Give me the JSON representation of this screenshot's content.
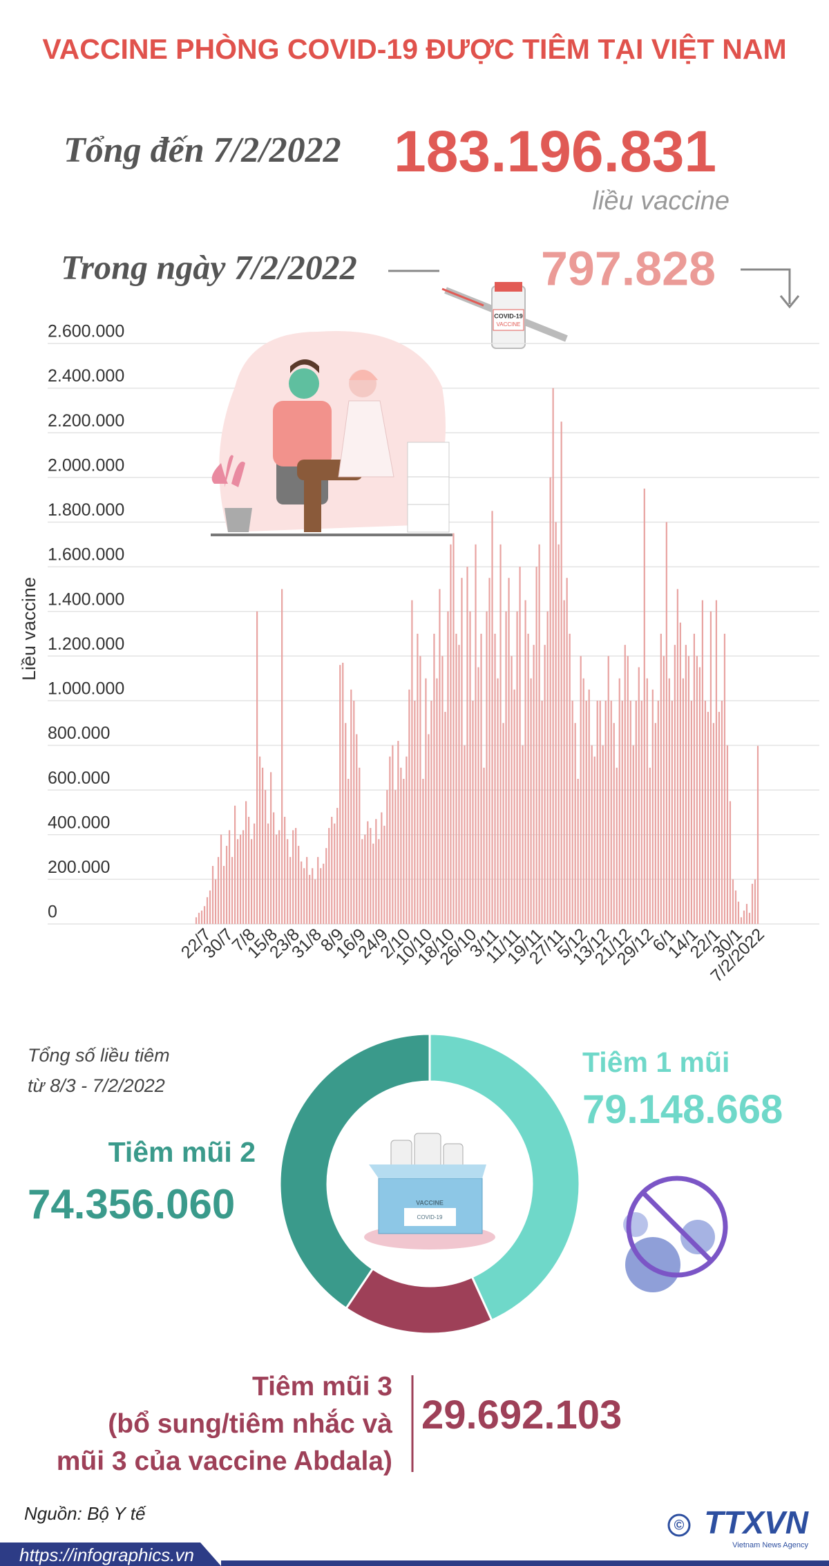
{
  "header": {
    "title": "VACCINE PHÒNG COVID-19 ĐƯỢC TIÊM TẠI VIỆT NAM",
    "total_label": "Tổng đến 7/2/2022",
    "total_value": "183.196.831",
    "total_unit": "liều vaccine",
    "day_label": "Trong ngày 7/2/2022",
    "day_value": "797.828"
  },
  "chart_data": [
    {
      "type": "bar",
      "ylabel": "Liều vaccine",
      "color": "#e8a3a1",
      "grid": true,
      "ylim": [
        0,
        2600000
      ],
      "yticks": [
        0,
        {
          "value": 200000,
          "label": "200.000"
        },
        {
          "value": 400000,
          "label": "400.000"
        },
        {
          "value": 600000,
          "label": "600.000"
        },
        {
          "value": 800000,
          "label": "800.000"
        },
        {
          "value": 1000000,
          "label": "1.000.000"
        },
        {
          "value": 1200000,
          "label": "1.200.000"
        },
        {
          "value": 1400000,
          "label": "1.400.000"
        },
        {
          "value": 1600000,
          "label": "1.600.000"
        },
        {
          "value": 1800000,
          "label": "1.800.000"
        },
        {
          "value": 2000000,
          "label": "2.000.000"
        },
        {
          "value": 2200000,
          "label": "2.200.000"
        },
        {
          "value": 2400000,
          "label": "2.400.000"
        },
        {
          "value": 2600000,
          "label": "2.600.000"
        }
      ],
      "categories": [
        null,
        null,
        null,
        "22/7",
        null,
        null,
        null,
        null,
        null,
        null,
        null,
        "30/7",
        null,
        null,
        null,
        null,
        null,
        null,
        null,
        "7/8",
        null,
        null,
        null,
        null,
        null,
        null,
        null,
        "15/8",
        null,
        null,
        null,
        null,
        null,
        null,
        null,
        "23/8",
        null,
        null,
        null,
        null,
        null,
        null,
        null,
        "31/8",
        null,
        null,
        null,
        null,
        null,
        null,
        null,
        "8/9",
        null,
        null,
        null,
        null,
        null,
        null,
        null,
        "16/9",
        null,
        null,
        null,
        null,
        null,
        null,
        null,
        "24/9",
        null,
        null,
        null,
        null,
        null,
        null,
        null,
        "2/10",
        null,
        null,
        null,
        null,
        null,
        null,
        null,
        "10/10",
        null,
        null,
        null,
        null,
        null,
        null,
        null,
        "18/10",
        null,
        null,
        null,
        null,
        null,
        null,
        null,
        "26/10",
        null,
        null,
        null,
        null,
        null,
        null,
        null,
        "3/11",
        null,
        null,
        null,
        null,
        null,
        null,
        null,
        "11/11",
        null,
        null,
        null,
        null,
        null,
        null,
        null,
        "19/11",
        null,
        null,
        null,
        null,
        null,
        null,
        null,
        "27/11",
        null,
        null,
        null,
        null,
        null,
        null,
        null,
        "5/12",
        null,
        null,
        null,
        null,
        null,
        null,
        null,
        "13/12",
        null,
        null,
        null,
        null,
        null,
        null,
        null,
        "21/12",
        null,
        null,
        null,
        null,
        null,
        null,
        null,
        "29/12",
        null,
        null,
        null,
        null,
        null,
        null,
        null,
        "6/1",
        null,
        null,
        null,
        null,
        null,
        null,
        null,
        "14/1",
        null,
        null,
        null,
        null,
        null,
        null,
        null,
        "22/1",
        null,
        null,
        null,
        null,
        null,
        null,
        null,
        "30/1",
        null,
        null,
        null,
        null,
        null,
        null,
        null,
        "7/2/2022"
      ],
      "values": [
        30000,
        50000,
        60000,
        80000,
        120000,
        150000,
        260000,
        200000,
        300000,
        400000,
        260000,
        350000,
        420000,
        300000,
        530000,
        380000,
        400000,
        420000,
        550000,
        480000,
        380000,
        450000,
        1400000,
        750000,
        700000,
        600000,
        450000,
        680000,
        500000,
        400000,
        420000,
        1500000,
        480000,
        380000,
        300000,
        420000,
        430000,
        350000,
        280000,
        250000,
        300000,
        220000,
        250000,
        200000,
        300000,
        250000,
        270000,
        340000,
        430000,
        480000,
        450000,
        520000,
        1160000,
        1170000,
        900000,
        650000,
        1050000,
        1000000,
        850000,
        700000,
        380000,
        400000,
        460000,
        430000,
        360000,
        470000,
        380000,
        500000,
        440000,
        600000,
        750000,
        800000,
        600000,
        820000,
        700000,
        650000,
        750000,
        1050000,
        1450000,
        1000000,
        1300000,
        1200000,
        650000,
        1100000,
        850000,
        1000000,
        1300000,
        1100000,
        1500000,
        1200000,
        950000,
        1400000,
        1700000,
        1750000,
        1300000,
        1250000,
        1550000,
        800000,
        1600000,
        1400000,
        1000000,
        1700000,
        1150000,
        1300000,
        700000,
        1400000,
        1550000,
        1850000,
        1300000,
        1100000,
        1700000,
        900000,
        1400000,
        1550000,
        1200000,
        1050000,
        1400000,
        1600000,
        800000,
        1450000,
        1300000,
        1100000,
        1250000,
        1600000,
        1700000,
        1000000,
        1250000,
        1400000,
        2000000,
        2400000,
        1800000,
        1700000,
        2250000,
        1450000,
        1550000,
        1300000,
        1000000,
        900000,
        650000,
        1200000,
        1100000,
        1000000,
        1050000,
        800000,
        750000,
        1000000,
        1000000,
        800000,
        1000000,
        1200000,
        1000000,
        900000,
        700000,
        1100000,
        1000000,
        1250000,
        1200000,
        1000000,
        800000,
        1000000,
        1150000,
        1000000,
        1950000,
        1100000,
        700000,
        1050000,
        900000,
        1000000,
        1300000,
        1200000,
        1800000,
        1100000,
        1000000,
        1250000,
        1500000,
        1350000,
        1100000,
        1250000,
        1200000,
        1000000,
        1300000,
        1200000,
        1150000,
        1450000,
        1000000,
        950000,
        1400000,
        900000,
        1450000,
        950000,
        1000000,
        1300000,
        800000,
        550000,
        200000,
        150000,
        100000,
        30000,
        60000,
        90000,
        50000,
        180000,
        200000,
        797828
      ]
    },
    {
      "type": "pie",
      "subtitle": "Tổng số liều tiêm\ntừ 8/3 - 7/2/2022",
      "categories": [
        "Tiêm 1 mũi",
        "Tiêm mũi 3\n(bổ sung/tiêm nhắc và\nmũi 3 của vaccine Abdala)",
        "Tiêm mũi 2"
      ],
      "values": [
        79148668,
        29692103,
        74356060
      ],
      "value_labels": [
        "79.148.668",
        "29.692.103",
        "74.356.060"
      ],
      "colors": [
        "#6fd8c9",
        "#9e4058",
        "#3a9a8b"
      ]
    }
  ],
  "illustration": {
    "vial_label": "VACCINE",
    "vial_sub": "COVID-19"
  },
  "footer": {
    "source": "Nguồn: Bộ Y tế",
    "url": "https://infographics.vn",
    "logo": "TTXVN",
    "logo_sub": "Vietnam News Agency",
    "copyright": "©"
  }
}
